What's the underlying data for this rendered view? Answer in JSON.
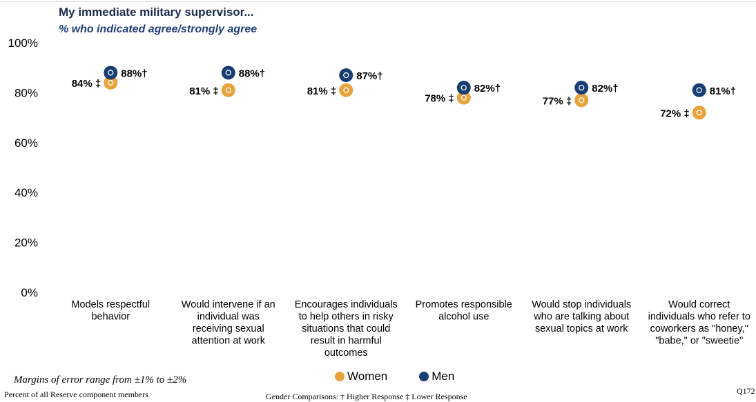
{
  "title": "My immediate military supervisor...",
  "subtitle": "% who indicated agree/strongly agree",
  "footer": {
    "margins": "Margins of error range from ±1% to ±2%",
    "population": "Percent of all  Reserve component members",
    "gender_comparisons": "Gender Comparisons:  † Higher  Response   ‡ Lower Response",
    "question_id": "Q172"
  },
  "colors": {
    "women": "#E8A33D",
    "men": "#163E72"
  },
  "chart_data": {
    "type": "scatter",
    "title": "My immediate military supervisor...",
    "subtitle": "% who indicated agree/strongly agree",
    "ylim": [
      0,
      100
    ],
    "yticks": [
      "0%",
      "20%",
      "40%",
      "60%",
      "80%",
      "100%"
    ],
    "grid": false,
    "legend": "bottom",
    "categories": [
      [
        "Models respectful",
        "behavior"
      ],
      [
        "Would intervene if an",
        "individual was",
        "receiving sexual",
        "attention at work"
      ],
      [
        "Encourages individuals",
        "to help others in risky",
        "situations that could",
        "result in harmful",
        "outcomes"
      ],
      [
        "Promotes responsible",
        "alcohol use"
      ],
      [
        "Would stop individuals",
        "who are talking about",
        "sexual topics at work"
      ],
      [
        "Would correct",
        "individuals who refer to",
        "coworkers as \"honey,\"",
        "\"babe,\" or \"sweetie\""
      ]
    ],
    "series": [
      {
        "name": "Women",
        "values": [
          84,
          81,
          81,
          78,
          77,
          72
        ],
        "labels": [
          "84%  ‡",
          "81%  ‡",
          "81%  ‡",
          "78%  ‡",
          "77%  ‡",
          "72%  ‡"
        ]
      },
      {
        "name": "Men",
        "values": [
          88,
          88,
          87,
          82,
          82,
          81
        ],
        "labels": [
          "88%†",
          "88%†",
          "87%†",
          "82%†",
          "82%†",
          "81%†"
        ]
      }
    ]
  }
}
